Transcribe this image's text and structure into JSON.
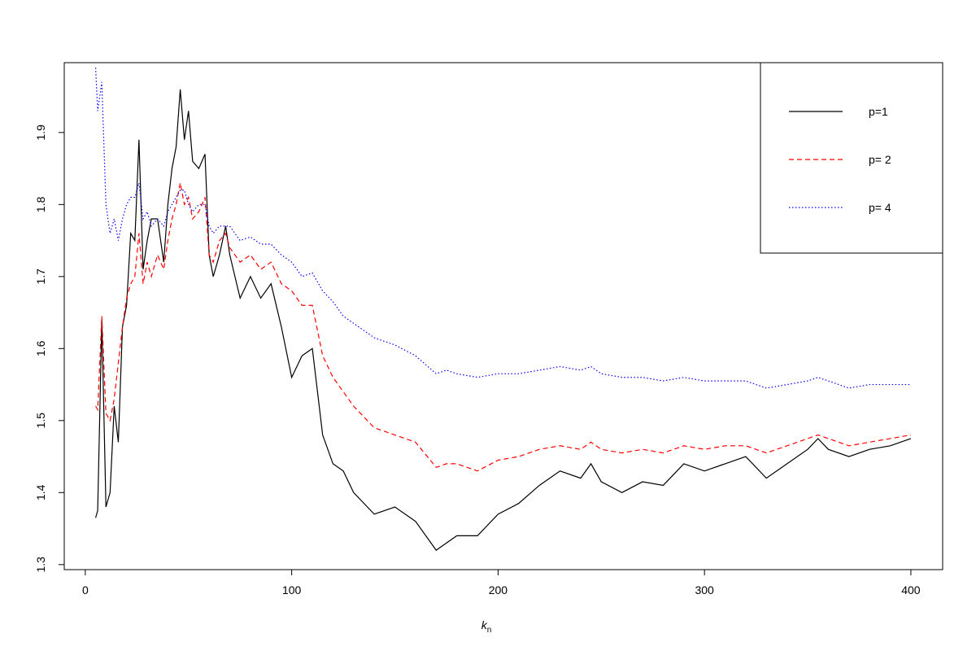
{
  "chart_data": {
    "type": "line",
    "xlabel": {
      "main": "k",
      "sub": "n"
    },
    "x": [
      5,
      6,
      8,
      10,
      12,
      14,
      16,
      18,
      20,
      22,
      24,
      26,
      28,
      30,
      32,
      35,
      38,
      40,
      42,
      44,
      46,
      48,
      50,
      52,
      55,
      58,
      60,
      62,
      65,
      68,
      70,
      75,
      80,
      85,
      90,
      95,
      100,
      105,
      110,
      115,
      120,
      125,
      130,
      140,
      150,
      160,
      170,
      175,
      180,
      190,
      200,
      210,
      220,
      230,
      240,
      245,
      250,
      260,
      270,
      280,
      290,
      300,
      310,
      320,
      330,
      340,
      350,
      355,
      360,
      370,
      380,
      390,
      400
    ],
    "series": [
      {
        "name": "p=1",
        "color": "#000000",
        "linestyle": "solid",
        "values": [
          1.365,
          1.375,
          1.64,
          1.38,
          1.4,
          1.52,
          1.47,
          1.63,
          1.66,
          1.76,
          1.75,
          1.89,
          1.71,
          1.75,
          1.78,
          1.78,
          1.72,
          1.8,
          1.85,
          1.88,
          1.96,
          1.89,
          1.93,
          1.86,
          1.85,
          1.87,
          1.73,
          1.7,
          1.73,
          1.77,
          1.73,
          1.67,
          1.7,
          1.67,
          1.69,
          1.63,
          1.56,
          1.59,
          1.6,
          1.48,
          1.44,
          1.43,
          1.4,
          1.37,
          1.38,
          1.36,
          1.32,
          1.33,
          1.34,
          1.34,
          1.37,
          1.385,
          1.41,
          1.43,
          1.42,
          1.44,
          1.415,
          1.4,
          1.415,
          1.41,
          1.44,
          1.43,
          1.44,
          1.45,
          1.42,
          1.44,
          1.46,
          1.475,
          1.46,
          1.45,
          1.46,
          1.465,
          1.475
        ]
      },
      {
        "name": "p= 2",
        "color": "#ff0000",
        "linestyle": "dashed",
        "values": [
          1.52,
          1.515,
          1.645,
          1.51,
          1.5,
          1.53,
          1.58,
          1.63,
          1.67,
          1.69,
          1.7,
          1.76,
          1.69,
          1.72,
          1.7,
          1.73,
          1.71,
          1.75,
          1.78,
          1.8,
          1.83,
          1.8,
          1.81,
          1.78,
          1.79,
          1.81,
          1.73,
          1.72,
          1.75,
          1.76,
          1.74,
          1.72,
          1.73,
          1.71,
          1.72,
          1.69,
          1.68,
          1.66,
          1.66,
          1.59,
          1.56,
          1.54,
          1.52,
          1.49,
          1.48,
          1.47,
          1.435,
          1.44,
          1.44,
          1.43,
          1.445,
          1.45,
          1.46,
          1.465,
          1.46,
          1.47,
          1.46,
          1.455,
          1.46,
          1.455,
          1.465,
          1.46,
          1.465,
          1.465,
          1.455,
          1.465,
          1.475,
          1.48,
          1.475,
          1.465,
          1.47,
          1.475,
          1.48
        ]
      },
      {
        "name": "p= 4",
        "color": "#0000ff",
        "linestyle": "dotted",
        "values": [
          1.99,
          1.93,
          1.97,
          1.8,
          1.76,
          1.78,
          1.75,
          1.78,
          1.8,
          1.81,
          1.81,
          1.83,
          1.78,
          1.79,
          1.77,
          1.78,
          1.77,
          1.79,
          1.8,
          1.81,
          1.82,
          1.82,
          1.8,
          1.79,
          1.8,
          1.8,
          1.77,
          1.76,
          1.77,
          1.77,
          1.77,
          1.75,
          1.755,
          1.745,
          1.745,
          1.73,
          1.72,
          1.7,
          1.705,
          1.68,
          1.665,
          1.645,
          1.635,
          1.615,
          1.605,
          1.59,
          1.565,
          1.57,
          1.565,
          1.56,
          1.565,
          1.565,
          1.57,
          1.575,
          1.57,
          1.575,
          1.565,
          1.56,
          1.56,
          1.555,
          1.56,
          1.555,
          1.555,
          1.555,
          1.545,
          1.55,
          1.555,
          1.56,
          1.555,
          1.545,
          1.55,
          1.55,
          1.55
        ]
      }
    ],
    "xlim": [
      -10.2,
      415.4
    ],
    "ylim": [
      1.293,
      1.997
    ],
    "xticks": [
      0,
      100,
      200,
      300,
      400
    ],
    "yticks": [
      1.3,
      1.4,
      1.5,
      1.6,
      1.7,
      1.8,
      1.9
    ],
    "legend": "top-right"
  }
}
